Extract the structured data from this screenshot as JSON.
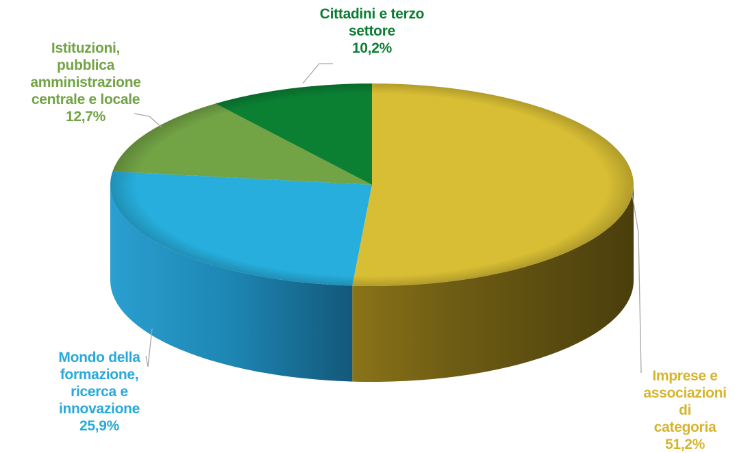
{
  "chart_data": {
    "type": "pie",
    "style": "3d",
    "slices": [
      {
        "label": "Imprese e\nassociazioni di\ncategoria",
        "value": 51.2,
        "value_label": "51,2%",
        "color": "#D8BE34",
        "label_color": "#D6B52D"
      },
      {
        "label": "Mondo della\nformazione,\nricerca e\ninnovazione",
        "value": 25.9,
        "value_label": "25,9%",
        "color": "#27AEDC",
        "label_color": "#27A9DB"
      },
      {
        "label": "Istituzioni,\npubblica\namministrazione\ncentrale e locale",
        "value": 12.7,
        "value_label": "12,7%",
        "color": "#72A344",
        "label_color": "#72A344"
      },
      {
        "label": "Cittadini e terzo\nsettore",
        "value": 10.2,
        "value_label": "10,2%",
        "color": "#0B8033",
        "label_color": "#0B7D33"
      }
    ]
  }
}
